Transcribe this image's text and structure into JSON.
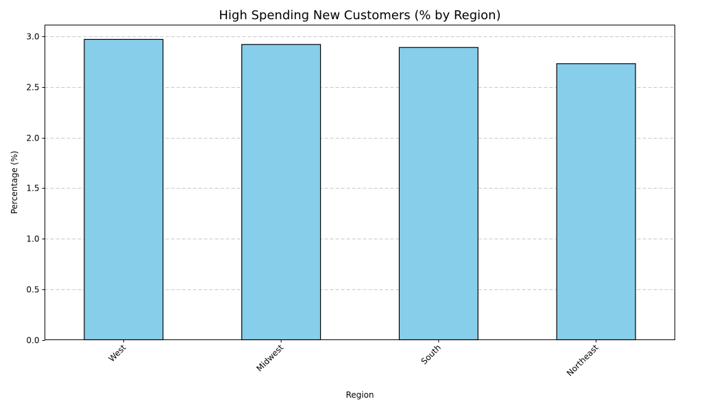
{
  "chart_data": {
    "type": "bar",
    "title": "High Spending New Customers (% by Region)",
    "xlabel": "Region",
    "ylabel": "Percentage (%)",
    "categories": [
      "West",
      "Midwest",
      "South",
      "Northeast"
    ],
    "values": [
      2.97,
      2.92,
      2.89,
      2.73
    ],
    "ylim": [
      0,
      3.112
    ],
    "yticks": [
      "0.0",
      "0.5",
      "1.0",
      "1.5",
      "2.0",
      "2.5",
      "3.0"
    ],
    "grid": "y, dashed",
    "bar_color": "#87CEEB",
    "edge_color": "#000000",
    "x_tick_rotation": 45
  }
}
